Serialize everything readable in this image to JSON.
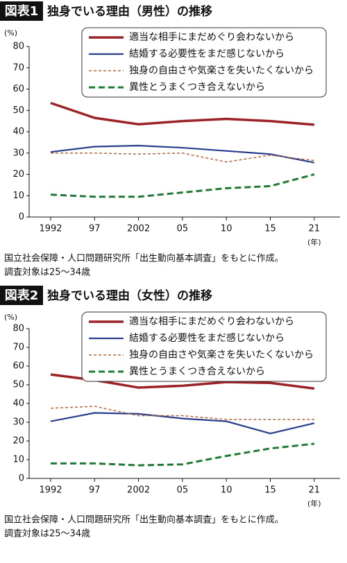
{
  "chart_data": [
    {
      "type": "line",
      "label": "図表1",
      "title": "独身でいる理由（男性）の推移",
      "y_unit": "(%)",
      "x_unit": "(年)",
      "categories": [
        "1992",
        "97",
        "2002",
        "05",
        "10",
        "15",
        "21"
      ],
      "series": [
        {
          "name": "適当な相手にまだめぐり会わないから",
          "color": "#9b2226",
          "dashed": false,
          "values": [
            53.5,
            46.5,
            43.5,
            45,
            46,
            45,
            43.3
          ]
        },
        {
          "name": "結婚する必要性をまだ感じないから",
          "color": "#283c8c",
          "dashed": false,
          "values": [
            30.5,
            33,
            33.5,
            32.5,
            31,
            29.5,
            25.5
          ]
        },
        {
          "name": "独身の自由さや気楽さを失いたくないから",
          "color": "#b0663a",
          "dashed": true,
          "values": [
            30,
            30,
            29.5,
            30,
            25.8,
            29,
            26.5
          ]
        },
        {
          "name": "異性とうまくつき合えないから",
          "color": "#1e7a32",
          "dashed": true,
          "values": [
            10.5,
            9.5,
            9.5,
            11.5,
            13.5,
            14.5,
            20
          ]
        }
      ],
      "ylim": [
        0,
        80
      ],
      "yticks": [
        0,
        10,
        20,
        30,
        40,
        50,
        60,
        70,
        80
      ],
      "notes": [
        "国立社会保障・人口問題研究所「出生動向基本調査」をもとに作成。",
        "調査対象は25〜34歳"
      ]
    },
    {
      "type": "line",
      "label": "図表2",
      "title": "独身でいる理由（女性）の推移",
      "y_unit": "(%)",
      "x_unit": "(年)",
      "categories": [
        "1992",
        "97",
        "2002",
        "05",
        "10",
        "15",
        "21"
      ],
      "series": [
        {
          "name": "適当な相手にまだめぐり会わないから",
          "color": "#9b2226",
          "dashed": false,
          "values": [
            55.5,
            52.5,
            48.5,
            49.5,
            51.5,
            51,
            48
          ]
        },
        {
          "name": "結婚する必要性をまだ感じないから",
          "color": "#283c8c",
          "dashed": false,
          "values": [
            30.5,
            35,
            34.5,
            32,
            30.5,
            24,
            29.5
          ]
        },
        {
          "name": "独身の自由さや気楽さを失いたくないから",
          "color": "#b0663a",
          "dashed": true,
          "values": [
            37.5,
            38.5,
            33.5,
            33.5,
            31.5,
            31.5,
            31.5
          ]
        },
        {
          "name": "異性とうまくつき合えないから",
          "color": "#1e7a32",
          "dashed": true,
          "values": [
            8,
            8,
            7,
            7.5,
            12,
            16,
            18.5
          ]
        }
      ],
      "ylim": [
        0,
        80
      ],
      "yticks": [
        0,
        10,
        20,
        30,
        40,
        50,
        60,
        70,
        80
      ],
      "notes": [
        "国立社会保障・人口問題研究所「出生動向基本調査」をもとに作成。",
        "調査対象は25〜34歳"
      ]
    }
  ]
}
